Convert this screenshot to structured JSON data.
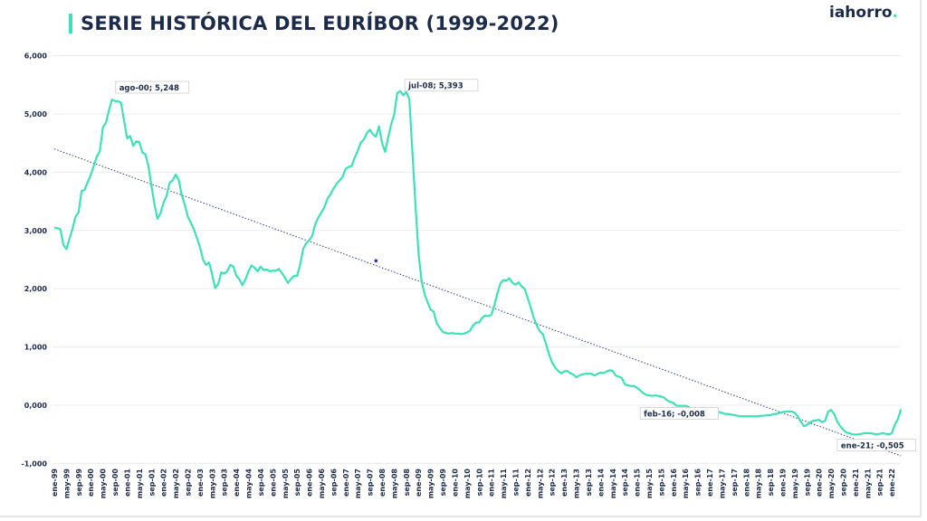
{
  "title": "SERIE HISTÓRICA DEL EURÍBOR (1999-2022)",
  "logo": "iahorro",
  "chart_data": {
    "type": "line",
    "title": "SERIE HISTÓRICA DEL EURÍBOR (1999-2022)",
    "xlabel": "",
    "ylabel": "",
    "x_start": "ene-99",
    "x_frequency": "monthly",
    "ylim": [
      -1,
      6
    ],
    "yticks": [
      "6,000",
      "5,000",
      "4,000",
      "3,000",
      "2,000",
      "1,000",
      "0,000",
      "-1,000"
    ],
    "ytick_values": [
      6,
      5,
      4,
      3,
      2,
      1,
      0,
      -1
    ],
    "grid": true,
    "line_color": "#3ee0b8",
    "trend_color": "#2a3a8a",
    "xtick_labels": [
      "ene-99",
      "may-99",
      "sep-99",
      "ene-00",
      "may-00",
      "sep-00",
      "ene-01",
      "may-01",
      "sep-01",
      "ene-02",
      "may-02",
      "sep-02",
      "ene-03",
      "may-03",
      "sep-03",
      "ene-04",
      "may-04",
      "sep-04",
      "ene-05",
      "may-05",
      "sep-05",
      "ene-06",
      "may-06",
      "sep-06",
      "ene-07",
      "may-07",
      "sep-07",
      "ene-08",
      "may-08",
      "sep-08",
      "ene-09",
      "may-09",
      "sep-09",
      "ene-10",
      "may-10",
      "sep-10",
      "ene-11",
      "may-11",
      "sep-11",
      "ene-12",
      "may-12",
      "sep-12",
      "ene-13",
      "may-13",
      "sep-13",
      "ene-14",
      "may-14",
      "sep-14",
      "ene-15",
      "may-15",
      "sep-15",
      "ene-16",
      "may-16",
      "sep-16",
      "ene-17",
      "may-17",
      "sep-17",
      "ene-18",
      "may-18",
      "sep-18",
      "ene-19",
      "may-19",
      "sep-19",
      "ene-20",
      "may-20",
      "sep-20",
      "ene-21",
      "may-21",
      "sep-21",
      "ene-22"
    ],
    "values": [
      3.05,
      3.04,
      3.02,
      2.75,
      2.68,
      2.86,
      3.03,
      3.24,
      3.31,
      3.68,
      3.7,
      3.83,
      3.95,
      4.11,
      4.27,
      4.36,
      4.77,
      4.85,
      5.06,
      5.248,
      5.22,
      5.22,
      5.19,
      4.88,
      4.58,
      4.62,
      4.45,
      4.53,
      4.52,
      4.34,
      4.31,
      4.11,
      3.77,
      3.45,
      3.2,
      3.3,
      3.48,
      3.59,
      3.82,
      3.86,
      3.96,
      3.87,
      3.61,
      3.44,
      3.24,
      3.13,
      3.02,
      2.87,
      2.71,
      2.5,
      2.41,
      2.45,
      2.25,
      2.01,
      2.08,
      2.28,
      2.26,
      2.3,
      2.41,
      2.38,
      2.22,
      2.16,
      2.06,
      2.16,
      2.3,
      2.4,
      2.36,
      2.3,
      2.38,
      2.32,
      2.33,
      2.3,
      2.31,
      2.31,
      2.34,
      2.27,
      2.19,
      2.1,
      2.17,
      2.22,
      2.22,
      2.41,
      2.68,
      2.78,
      2.83,
      2.91,
      3.11,
      3.22,
      3.31,
      3.4,
      3.54,
      3.62,
      3.72,
      3.8,
      3.86,
      3.92,
      4.06,
      4.09,
      4.11,
      4.25,
      4.37,
      4.51,
      4.56,
      4.67,
      4.73,
      4.65,
      4.61,
      4.79,
      4.5,
      4.35,
      4.59,
      4.82,
      4.99,
      5.36,
      5.393,
      5.32,
      5.38,
      5.25,
      4.35,
      3.45,
      2.62,
      2.14,
      1.91,
      1.77,
      1.64,
      1.61,
      1.41,
      1.33,
      1.26,
      1.24,
      1.23,
      1.24,
      1.23,
      1.23,
      1.22,
      1.23,
      1.25,
      1.28,
      1.37,
      1.42,
      1.42,
      1.5,
      1.54,
      1.53,
      1.55,
      1.71,
      1.92,
      2.09,
      2.15,
      2.14,
      2.18,
      2.1,
      2.07,
      2.11,
      2.04,
      2.0,
      1.84,
      1.68,
      1.5,
      1.37,
      1.27,
      1.22,
      1.06,
      0.88,
      0.74,
      0.65,
      0.59,
      0.55,
      0.58,
      0.59,
      0.55,
      0.53,
      0.48,
      0.51,
      0.53,
      0.54,
      0.54,
      0.54,
      0.51,
      0.54,
      0.56,
      0.55,
      0.58,
      0.6,
      0.59,
      0.51,
      0.49,
      0.47,
      0.36,
      0.34,
      0.33,
      0.33,
      0.3,
      0.26,
      0.21,
      0.18,
      0.17,
      0.16,
      0.17,
      0.16,
      0.15,
      0.13,
      0.08,
      0.06,
      0.04,
      -0.008,
      -0.01,
      -0.01,
      -0.01,
      -0.03,
      -0.06,
      -0.05,
      -0.06,
      -0.07,
      -0.07,
      -0.08,
      -0.1,
      -0.11,
      -0.11,
      -0.12,
      -0.13,
      -0.15,
      -0.15,
      -0.16,
      -0.17,
      -0.18,
      -0.19,
      -0.19,
      -0.19,
      -0.19,
      -0.19,
      -0.19,
      -0.19,
      -0.18,
      -0.18,
      -0.17,
      -0.17,
      -0.15,
      -0.15,
      -0.13,
      -0.12,
      -0.11,
      -0.11,
      -0.11,
      -0.13,
      -0.19,
      -0.28,
      -0.36,
      -0.34,
      -0.3,
      -0.27,
      -0.26,
      -0.25,
      -0.29,
      -0.27,
      -0.11,
      -0.08,
      -0.15,
      -0.28,
      -0.36,
      -0.42,
      -0.47,
      -0.48,
      -0.5,
      -0.505,
      -0.5,
      -0.49,
      -0.48,
      -0.48,
      -0.48,
      -0.49,
      -0.5,
      -0.49,
      -0.48,
      -0.49,
      -0.5,
      -0.48,
      -0.33,
      -0.24,
      -0.07
    ],
    "trendline": {
      "start_value": 4.4,
      "end_value": -0.87,
      "style": "dotted"
    },
    "marker": {
      "x": "nov-07",
      "y": 2.48,
      "color": "#2233cc"
    },
    "annotations": [
      {
        "x": "ago-00",
        "y": 5.248,
        "label": "ago-00; 5,248"
      },
      {
        "x": "jul-08",
        "y": 5.393,
        "label": "jul-08; 5,393"
      },
      {
        "x": "feb-16",
        "y": -0.008,
        "label": "feb-16; -0,008"
      },
      {
        "x": "ene-21",
        "y": -0.505,
        "label": "ene-21; -0,505"
      }
    ]
  }
}
